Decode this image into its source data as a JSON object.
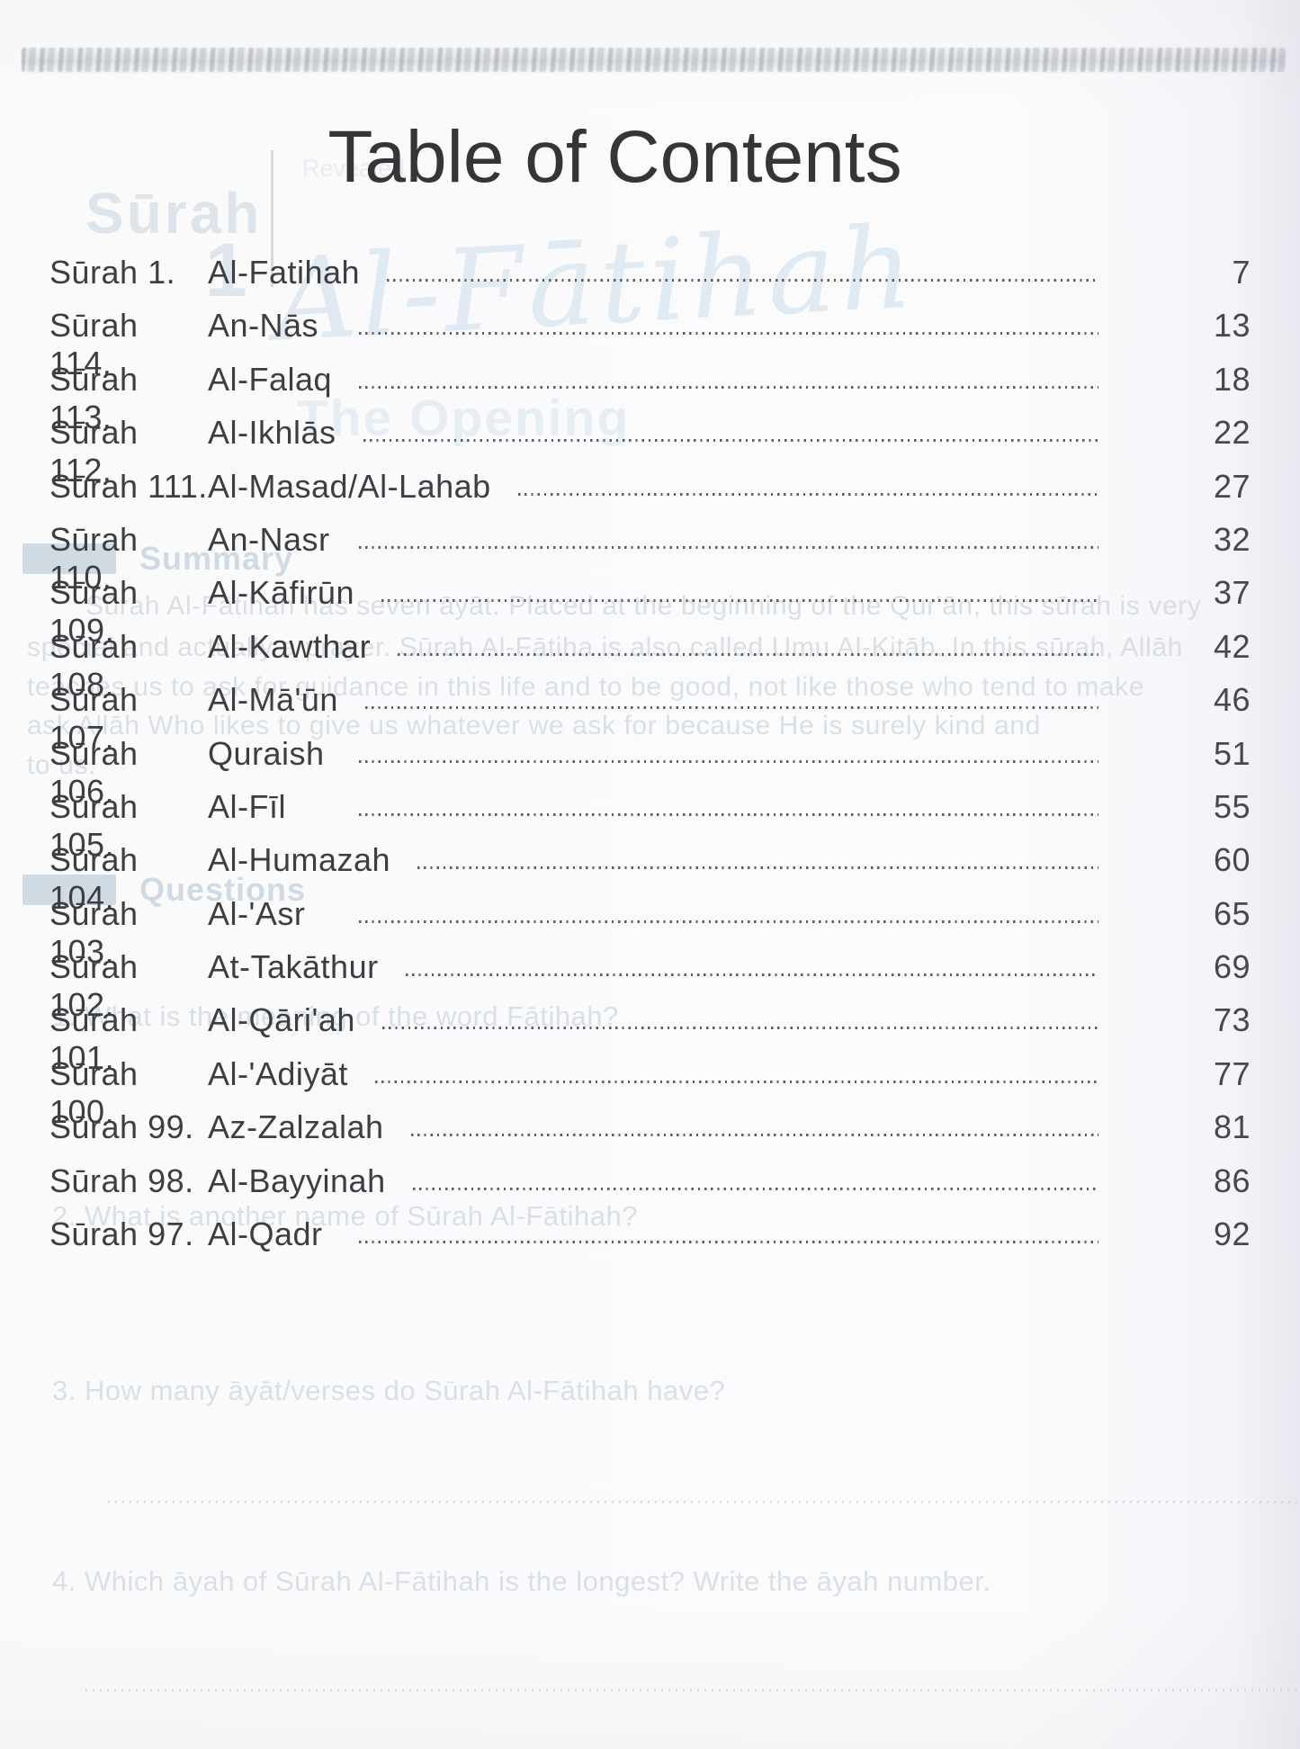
{
  "page": {
    "title": "Table of Contents",
    "entries": [
      {
        "label": "Sūrah 1.",
        "name": "Al-Fatihah",
        "page": "7"
      },
      {
        "label": "Sūrah 114.",
        "name": "An-Nās",
        "page": "13"
      },
      {
        "label": "Sūrah 113.",
        "name": "Al-Falaq",
        "page": "18"
      },
      {
        "label": "Sūrah 112.",
        "name": "Al-Ikhlās",
        "page": "22"
      },
      {
        "label": "Sūrah 111.",
        "name": "Al-Masad/Al-Lahab",
        "page": "27"
      },
      {
        "label": "Sūrah 110.",
        "name": "An-Nasr",
        "page": "32"
      },
      {
        "label": "Sūrah 109.",
        "name": "Al-Kāfirūn",
        "page": "37"
      },
      {
        "label": "Sūrah 108.",
        "name": "Al-Kawthar",
        "page": "42"
      },
      {
        "label": "Sūrah 107.",
        "name": "Al-Mā'ūn",
        "page": "46"
      },
      {
        "label": "Sūrah 106.",
        "name": "Quraish",
        "page": "51"
      },
      {
        "label": "Sūrah 105.",
        "name": "Al-Fīl",
        "page": "55"
      },
      {
        "label": "Sūrah 104.",
        "name": "Al-Humazah",
        "page": "60"
      },
      {
        "label": "Sūrah 103.",
        "name": "Al-'Asr",
        "page": "65"
      },
      {
        "label": "Sūrah 102.",
        "name": "At-Takāthur",
        "page": "69"
      },
      {
        "label": "Sūrah 101.",
        "name": "Al-Qāri'ah",
        "page": "73"
      },
      {
        "label": "Sūrah 100.",
        "name": "Al-'Adiyāt",
        "page": "77"
      },
      {
        "label": "Sūrah 99.",
        "name": "Az-Zalzalah",
        "page": "81"
      },
      {
        "label": "Sūrah 98.",
        "name": "Al-Bayyinah",
        "page": "86"
      },
      {
        "label": "Sūrah 97.",
        "name": "Al-Qadr",
        "page": "92"
      }
    ]
  },
  "ghost": {
    "surah_word": "Sūrah",
    "surah_number": "1",
    "revealed": "Revealed",
    "calligraphy": "Al-Fātihah",
    "subtitle": "The Opening",
    "summary_label": "Summary",
    "summary_lines": [
      "Sūrah Al-Fātihah has seven āyāt. Placed at the beginning of the Qur'ān, this sūrah is very",
      "special and actually a prayer. Sūrah Al-Fātiha is also called Umu Al-Kitāb. In this sūrah, Allāh",
      "teaches us to ask for guidance in this life and to be good, not like those who tend to make",
      "ask Allāh Who likes to give us whatever we ask for because He is surely kind and",
      "to us."
    ],
    "questions_label": "Questions",
    "questions": [
      "1. What is the meaning of the word Fātihah?",
      "2. What is another name of Sūrah Al-Fātihah?",
      "3. How many āyāt/verses do Sūrah Al-Fātihah have?",
      "4. Which āyah of  Sūrah Al-Fātihah is the longest? Write the āyah number."
    ]
  }
}
